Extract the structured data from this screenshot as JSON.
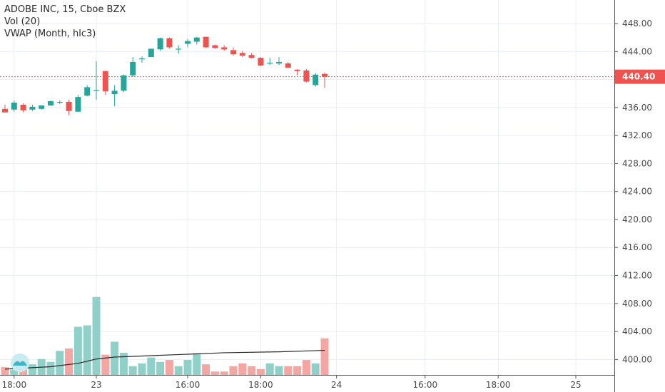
{
  "legend": {
    "title": "ADOBE INC, 15, Cboe BZX",
    "vol": "Vol (20)",
    "vwap": "VWAP (Month, hlc3)"
  },
  "colors": {
    "up": "#26a69a",
    "down": "#ef5350",
    "up_vol": "#8fd0c8",
    "down_vol": "#f4a6a3",
    "vwap": "#2b2b2b",
    "grid": "#e9eef3",
    "price_line": "#ef5350"
  },
  "chart_data": {
    "type": "candlestick",
    "ylim": [
      398,
      451
    ],
    "y_ticks": [
      "448.00",
      "444.00",
      "440.00",
      "436.00",
      "432.00",
      "428.00",
      "424.00",
      "420.00",
      "416.00",
      "412.00",
      "408.00",
      "404.00",
      "400.00"
    ],
    "x_ticks": [
      {
        "label": "18:00",
        "i": 1
      },
      {
        "label": "23",
        "i": 10
      },
      {
        "label": "16:00",
        "i": 20
      },
      {
        "label": "18:00",
        "i": 28
      },
      {
        "label": "24",
        "i": 36.3
      },
      {
        "label": "16:00",
        "i": 46
      },
      {
        "label": "18:00",
        "i": 54
      },
      {
        "label": "25",
        "i": 62.5
      }
    ],
    "last_price": "440.40",
    "last_value": 440.4,
    "candles": [
      {
        "o": 435.8,
        "h": 436.4,
        "l": 435.3,
        "c": 435.3,
        "v": 1.6
      },
      {
        "o": 435.7,
        "h": 437.0,
        "l": 435.4,
        "c": 436.7,
        "v": 1.1
      },
      {
        "o": 436.4,
        "h": 436.6,
        "l": 435.3,
        "c": 435.6,
        "v": 1.5
      },
      {
        "o": 435.7,
        "h": 436.4,
        "l": 435.5,
        "c": 436.1,
        "v": 2.2
      },
      {
        "o": 435.8,
        "h": 436.3,
        "l": 435.7,
        "c": 436.3,
        "v": 3.3
      },
      {
        "o": 436.3,
        "h": 437.0,
        "l": 436.2,
        "c": 436.9,
        "v": 2.7
      },
      {
        "o": 436.8,
        "h": 437.0,
        "l": 436.5,
        "c": 436.8,
        "v": 5.0
      },
      {
        "o": 436.8,
        "h": 437.1,
        "l": 434.9,
        "c": 435.5,
        "v": 5.5
      },
      {
        "o": 435.4,
        "h": 437.8,
        "l": 435.4,
        "c": 437.5,
        "v": 10.0
      },
      {
        "o": 437.7,
        "h": 439.2,
        "l": 437.6,
        "c": 438.9,
        "v": 10.3
      },
      {
        "o": 438.4,
        "h": 442.6,
        "l": 437.1,
        "c": 438.5,
        "v": 16.2
      },
      {
        "o": 441.2,
        "h": 441.3,
        "l": 437.8,
        "c": 438.3,
        "v": 4.2
      },
      {
        "o": 437.9,
        "h": 439.2,
        "l": 436.2,
        "c": 438.4,
        "v": 6.9
      },
      {
        "o": 438.4,
        "h": 440.7,
        "l": 438.2,
        "c": 440.6,
        "v": 4.6
      },
      {
        "o": 440.6,
        "h": 443.2,
        "l": 440.4,
        "c": 442.5,
        "v": 1.8
      },
      {
        "o": 443.0,
        "h": 443.3,
        "l": 442.4,
        "c": 443.0,
        "v": 2.4
      },
      {
        "o": 443.2,
        "h": 444.4,
        "l": 443.2,
        "c": 444.4,
        "v": 3.6
      },
      {
        "o": 444.3,
        "h": 446.0,
        "l": 444.1,
        "c": 445.9,
        "v": 2.7
      },
      {
        "o": 445.9,
        "h": 446.0,
        "l": 444.4,
        "c": 444.6,
        "v": 3.1
      },
      {
        "o": 444.3,
        "h": 444.9,
        "l": 443.7,
        "c": 444.4,
        "v": 1.8
      },
      {
        "o": 445.1,
        "h": 445.8,
        "l": 444.6,
        "c": 445.5,
        "v": 3.1
      },
      {
        "o": 445.4,
        "h": 446.1,
        "l": 445.0,
        "c": 446.0,
        "v": 4.5
      },
      {
        "o": 446.1,
        "h": 446.1,
        "l": 444.5,
        "c": 444.6,
        "v": 2.2
      },
      {
        "o": 444.9,
        "h": 445.0,
        "l": 444.4,
        "c": 444.5,
        "v": 0.7
      },
      {
        "o": 444.6,
        "h": 444.9,
        "l": 444.1,
        "c": 444.3,
        "v": 0.7
      },
      {
        "o": 444.2,
        "h": 444.6,
        "l": 443.4,
        "c": 443.6,
        "v": 1.8
      },
      {
        "o": 443.8,
        "h": 444.1,
        "l": 443.2,
        "c": 443.4,
        "v": 2.4
      },
      {
        "o": 443.5,
        "h": 443.8,
        "l": 443.0,
        "c": 443.1,
        "v": 1.8
      },
      {
        "o": 443.1,
        "h": 443.2,
        "l": 441.9,
        "c": 442.0,
        "v": 1.2
      },
      {
        "o": 442.3,
        "h": 443.1,
        "l": 442.1,
        "c": 442.4,
        "v": 2.4
      },
      {
        "o": 442.3,
        "h": 443.2,
        "l": 442.1,
        "c": 442.5,
        "v": 1.8
      },
      {
        "o": 442.3,
        "h": 442.5,
        "l": 441.6,
        "c": 441.7,
        "v": 1.8
      },
      {
        "o": 441.4,
        "h": 441.5,
        "l": 440.6,
        "c": 441.2,
        "v": 1.8
      },
      {
        "o": 441.3,
        "h": 441.5,
        "l": 439.6,
        "c": 439.7,
        "v": 3.1
      },
      {
        "o": 439.2,
        "h": 440.9,
        "l": 439.0,
        "c": 440.7,
        "v": 2.4
      },
      {
        "o": 440.8,
        "h": 441.0,
        "l": 438.8,
        "c": 440.4,
        "v": 7.6
      }
    ],
    "vwap": [
      {
        "i": 0,
        "v": 1.2
      },
      {
        "i": 5,
        "v": 1.7
      },
      {
        "i": 8,
        "v": 2.4
      },
      {
        "i": 10,
        "v": 3.3
      },
      {
        "i": 12,
        "v": 3.7
      },
      {
        "i": 16,
        "v": 4.0
      },
      {
        "i": 20,
        "v": 4.3
      },
      {
        "i": 24,
        "v": 4.6
      },
      {
        "i": 30,
        "v": 4.8
      },
      {
        "i": 35,
        "v": 5.1
      }
    ],
    "vmax": 20
  }
}
